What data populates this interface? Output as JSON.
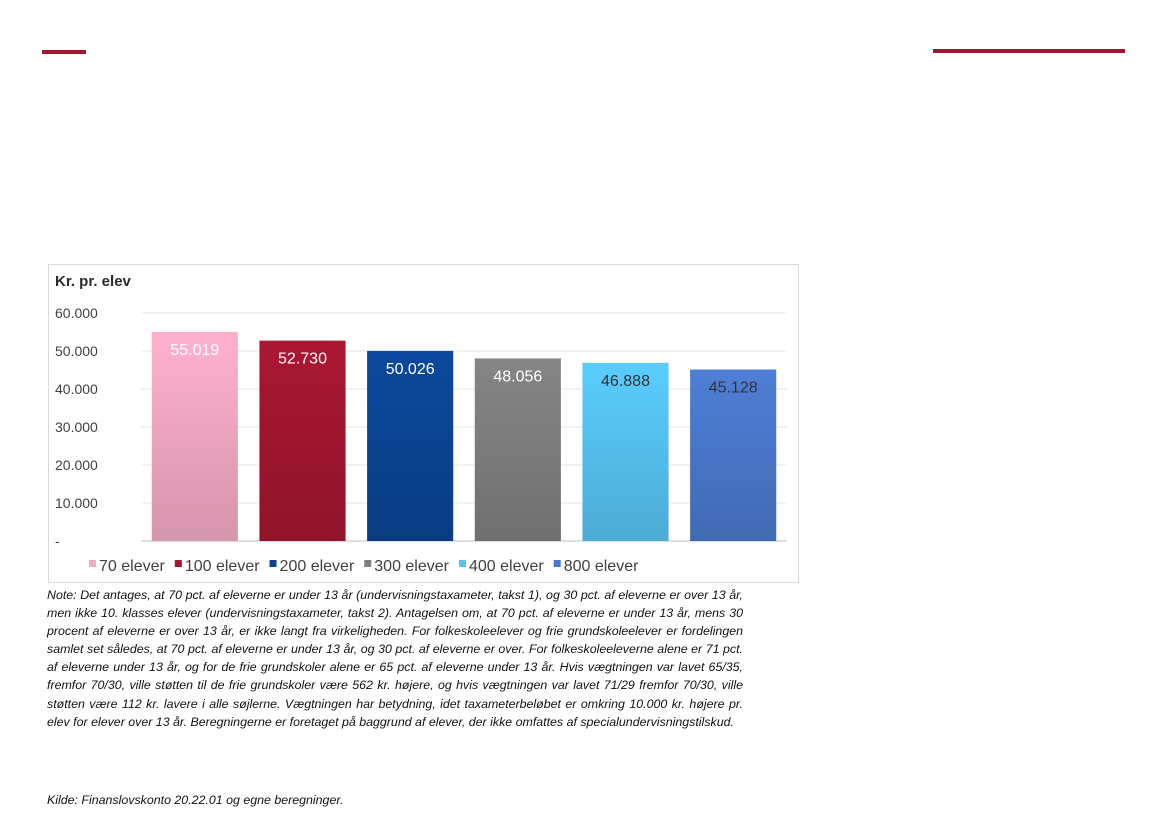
{
  "colors": {
    "accent": "#a31630",
    "series": [
      "#f2a9c4",
      "#a31630",
      "#0b4595",
      "#7f7f7f",
      "#55c3f2",
      "#4a78cc"
    ]
  },
  "chart_data": {
    "type": "bar",
    "title": "Kr. pr. elev",
    "categories": [
      "70 elever",
      "100 elever",
      "200 elever",
      "300 elever",
      "400 elever",
      "800 elever"
    ],
    "values": [
      55019,
      52730,
      50026,
      48056,
      46888,
      45128
    ],
    "data_labels": [
      "55.019",
      "52.730",
      "50.026",
      "48.056",
      "46.888",
      "45.128"
    ],
    "ylim": [
      0,
      60000
    ],
    "yticks": [
      0,
      10000,
      20000,
      30000,
      40000,
      50000,
      60000
    ],
    "ytick_labels": [
      "-",
      "10.000",
      "20.000",
      "30.000",
      "40.000",
      "50.000",
      "60.000"
    ],
    "grid": true,
    "legend": "bottom"
  },
  "note": "Note: Det antages, at 70 pct. af eleverne er under 13 år (undervisningstaxameter, takst 1), og 30 pct. af eleverne er over 13 år, men ikke 10. klasses elever (undervisningstaxameter, takst 2). Antagelsen om, at 70 pct. af eleverne er under 13 år, mens 30 procent af eleverne er over 13 år, er ikke langt fra virkeligheden. For folkeskoleelever og frie grundskoleelever er fordelingen samlet set således, at 70 pct. af eleverne er under 13 år, og 30 pct. af eleverne er over. For folkeskoleeleverne alene er 71 pct. af eleverne under 13 år, og for de frie grundskoler alene er 65 pct. af eleverne under 13 år. Hvis vægtningen var lavet 65/35, fremfor 70/30, ville støtten til de frie grundskoler være 562 kr. højere, og hvis vægtningen var lavet 71/29 fremfor 70/30, ville støtten være 112 kr. lavere i alle søjlerne. Vægtningen har betydning, idet taxameterbeløbet er omkring 10.000 kr. højere pr. elev for elever over 13 år. Beregningerne er foretaget på baggrund af elever, der ikke omfattes af specialundervisningstilskud.",
  "source": "Kilde: Finanslovskonto 20.22.01 og egne beregninger."
}
